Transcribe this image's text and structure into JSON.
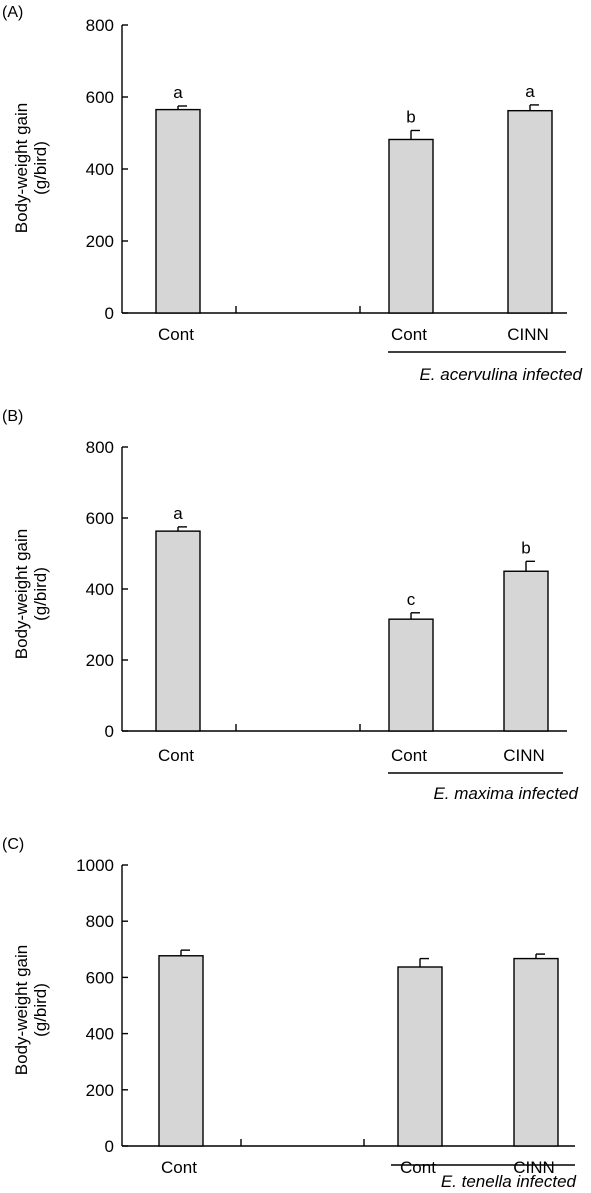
{
  "colors": {
    "bar_fill": "#d6d6d6",
    "axis": "#000000"
  },
  "chart_data": [
    {
      "type": "bar",
      "panel_label": "(A)",
      "ylabel_line1": "Body-weight gain",
      "ylabel_line2": "(g/bird)",
      "ylim": [
        0,
        800
      ],
      "yticks": [
        "0",
        "200",
        "400",
        "600",
        "800"
      ],
      "categories": [
        "Cont",
        "Cont",
        "CINN"
      ],
      "values": [
        565,
        482,
        562
      ],
      "errors": [
        10,
        25,
        16
      ],
      "significance": [
        "a",
        "b",
        "a"
      ],
      "group_label": "E. acervulina infected"
    },
    {
      "type": "bar",
      "panel_label": "(B)",
      "ylabel_line1": "Body-weight gain",
      "ylabel_line2": "(g/bird)",
      "ylim": [
        0,
        800
      ],
      "yticks": [
        "0",
        "200",
        "400",
        "600",
        "800"
      ],
      "categories": [
        "Cont",
        "Cont",
        "CINN"
      ],
      "values": [
        563,
        315,
        450
      ],
      "errors": [
        12,
        18,
        28
      ],
      "significance": [
        "a",
        "c",
        "b"
      ],
      "group_label": "E. maxima infected"
    },
    {
      "type": "bar",
      "panel_label": "(C)",
      "ylabel_line1": "Body-weight gain",
      "ylabel_line2": "(g/bird)",
      "ylim": [
        0,
        1000
      ],
      "yticks": [
        "0",
        "200",
        "400",
        "600",
        "800",
        "1000"
      ],
      "categories": [
        "Cont",
        "Cont",
        "CINN"
      ],
      "values": [
        677,
        637,
        667
      ],
      "errors": [
        20,
        30,
        16
      ],
      "significance": [
        "",
        "",
        ""
      ],
      "group_label": "E. tenella infected"
    }
  ]
}
